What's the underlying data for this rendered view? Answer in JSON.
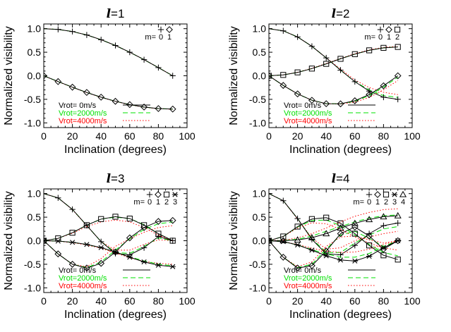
{
  "chart_data": [
    {
      "type": "line",
      "title": "l=1",
      "title_symbol": "l",
      "title_value": "=1",
      "xlabel": "Inclination (degrees)",
      "ylabel": "Normalized visibility",
      "xlim": [
        0,
        100
      ],
      "ylim": [
        -1.1,
        1.1
      ],
      "xticks": [
        "0",
        "20",
        "40",
        "60",
        "80",
        "100"
      ],
      "yticks": [
        "-1.0",
        "-0.5",
        "0.0",
        "0.5",
        "1.0"
      ],
      "grid": false,
      "m_legend": {
        "prefix": "m=",
        "values": [
          "0",
          "1"
        ],
        "markers": [
          "plus",
          "diamond"
        ]
      },
      "x": [
        0,
        10,
        20,
        30,
        40,
        50,
        60,
        70,
        80,
        90
      ],
      "series": [
        {
          "m": "0",
          "marker": "plus",
          "values": [
            1.0,
            0.985,
            0.94,
            0.866,
            0.766,
            0.643,
            0.5,
            0.342,
            0.174,
            0.0
          ],
          "alt_2000": [
            1.0,
            0.985,
            0.94,
            0.866,
            0.766,
            0.643,
            0.5,
            0.342,
            0.174,
            0.0
          ],
          "alt_4000": [
            1.0,
            0.985,
            0.94,
            0.866,
            0.766,
            0.643,
            0.5,
            0.342,
            0.174,
            0.0
          ]
        },
        {
          "m": "1",
          "marker": "diamond",
          "values": [
            0.0,
            -0.123,
            -0.242,
            -0.354,
            -0.455,
            -0.542,
            -0.612,
            -0.664,
            -0.696,
            -0.707
          ],
          "alt_2000": [
            0.0,
            -0.123,
            -0.242,
            -0.354,
            -0.455,
            -0.542,
            -0.612,
            -0.664,
            -0.696,
            -0.707
          ],
          "alt_4000": [
            0.0,
            -0.125,
            -0.245,
            -0.357,
            -0.458,
            -0.545,
            -0.615,
            -0.667,
            -0.699,
            -0.71
          ]
        }
      ]
    },
    {
      "type": "line",
      "title": "l=2",
      "title_symbol": "l",
      "title_value": "=2",
      "xlabel": "Inclination (degrees)",
      "ylabel": "Normalized visibility",
      "xlim": [
        0,
        100
      ],
      "ylim": [
        -1.1,
        1.1
      ],
      "xticks": [
        "0",
        "20",
        "40",
        "60",
        "80",
        "100"
      ],
      "yticks": [
        "-1.0",
        "-0.5",
        "0.0",
        "0.5",
        "1.0"
      ],
      "grid": false,
      "m_legend": {
        "prefix": "m=",
        "values": [
          "0",
          "1",
          "2"
        ],
        "markers": [
          "plus",
          "diamond",
          "square"
        ]
      },
      "x": [
        0,
        10,
        20,
        30,
        40,
        50,
        60,
        70,
        80,
        90
      ],
      "series": [
        {
          "m": "0",
          "marker": "plus",
          "values": [
            1.0,
            0.955,
            0.825,
            0.625,
            0.38,
            0.12,
            -0.125,
            -0.325,
            -0.455,
            -0.5
          ],
          "alt_2000": [
            1.0,
            0.955,
            0.825,
            0.625,
            0.38,
            0.12,
            -0.125,
            -0.3,
            -0.42,
            -0.46
          ],
          "alt_4000": [
            1.0,
            0.955,
            0.825,
            0.625,
            0.38,
            0.14,
            -0.09,
            -0.25,
            -0.35,
            -0.4
          ]
        },
        {
          "m": "1",
          "marker": "diamond",
          "values": [
            0.0,
            -0.205,
            -0.385,
            -0.52,
            -0.593,
            -0.596,
            -0.53,
            -0.399,
            -0.213,
            0.0
          ],
          "alt_2000": [
            0.0,
            -0.205,
            -0.385,
            -0.52,
            -0.593,
            -0.596,
            -0.54,
            -0.42,
            -0.24,
            -0.03
          ],
          "alt_4000": [
            0.0,
            -0.205,
            -0.385,
            -0.52,
            -0.593,
            -0.6,
            -0.56,
            -0.46,
            -0.3,
            -0.1
          ]
        },
        {
          "m": "2",
          "marker": "square",
          "values": [
            0.0,
            0.018,
            0.072,
            0.153,
            0.253,
            0.36,
            0.459,
            0.54,
            0.593,
            0.612
          ],
          "alt_2000": [
            0.0,
            0.018,
            0.072,
            0.153,
            0.253,
            0.36,
            0.459,
            0.54,
            0.593,
            0.612
          ],
          "alt_4000": [
            0.0,
            0.02,
            0.075,
            0.158,
            0.26,
            0.368,
            0.468,
            0.55,
            0.603,
            0.625
          ]
        }
      ]
    },
    {
      "type": "line",
      "title": "l=3",
      "title_symbol": "l",
      "title_value": "=3",
      "xlabel": "Inclination (degrees)",
      "ylabel": "Normalized visibility",
      "xlim": [
        0,
        100
      ],
      "ylim": [
        -1.1,
        1.1
      ],
      "xticks": [
        "0",
        "20",
        "40",
        "60",
        "80",
        "100"
      ],
      "yticks": [
        "-1.0",
        "-0.5",
        "0.0",
        "0.5",
        "1.0"
      ],
      "grid": false,
      "m_legend": {
        "prefix": "m=",
        "values": [
          "0",
          "1",
          "2",
          "3"
        ],
        "markers": [
          "plus",
          "diamond",
          "square",
          "asterisk"
        ]
      },
      "x": [
        0,
        10,
        20,
        30,
        40,
        50,
        60,
        70,
        80,
        90
      ],
      "series": [
        {
          "m": "0",
          "marker": "plus",
          "values": [
            1.0,
            0.91,
            0.665,
            0.325,
            -0.02,
            -0.27,
            -0.3,
            -0.15,
            0.09,
            0.0
          ],
          "alt_2000": [
            1.0,
            0.91,
            0.665,
            0.325,
            -0.02,
            -0.25,
            -0.27,
            -0.12,
            0.06,
            0.0
          ],
          "alt_4000": [
            1.0,
            0.91,
            0.66,
            0.32,
            -0.02,
            -0.2,
            -0.2,
            -0.08,
            0.02,
            0.0
          ]
        },
        {
          "m": "1",
          "marker": "diamond",
          "values": [
            0.0,
            -0.28,
            -0.5,
            -0.58,
            -0.48,
            -0.24,
            0.06,
            0.28,
            0.41,
            0.43
          ],
          "alt_2000": [
            0.0,
            -0.28,
            -0.5,
            -0.57,
            -0.45,
            -0.2,
            0.04,
            0.24,
            0.36,
            0.4
          ],
          "alt_4000": [
            0.0,
            -0.28,
            -0.5,
            -0.55,
            -0.38,
            -0.12,
            0.04,
            0.18,
            0.28,
            0.32
          ]
        },
        {
          "m": "2",
          "marker": "square",
          "values": [
            0.0,
            0.05,
            0.17,
            0.33,
            0.46,
            0.51,
            0.47,
            0.33,
            0.15,
            0.0
          ],
          "alt_2000": [
            0.0,
            0.05,
            0.17,
            0.33,
            0.46,
            0.5,
            0.47,
            0.34,
            0.15,
            0.0
          ],
          "alt_4000": [
            0.0,
            0.05,
            0.16,
            0.3,
            0.4,
            0.44,
            0.4,
            0.28,
            0.12,
            0.0
          ]
        },
        {
          "m": "3",
          "marker": "asterisk",
          "values": [
            0.0,
            -0.008,
            -0.035,
            -0.08,
            -0.145,
            -0.24,
            -0.35,
            -0.45,
            -0.52,
            -0.55
          ],
          "alt_2000": [
            0.0,
            -0.008,
            -0.035,
            -0.08,
            -0.15,
            -0.24,
            -0.34,
            -0.43,
            -0.5,
            -0.53
          ],
          "alt_4000": [
            0.0,
            -0.01,
            -0.04,
            -0.09,
            -0.16,
            -0.26,
            -0.36,
            -0.44,
            -0.48,
            -0.5
          ]
        }
      ]
    },
    {
      "type": "line",
      "title": "l=4",
      "title_symbol": "l",
      "title_value": "=4",
      "xlabel": "Inclination (degrees)",
      "ylabel": "Normalized visibility",
      "xlim": [
        0,
        100
      ],
      "ylim": [
        -1.1,
        1.1
      ],
      "xticks": [
        "0",
        "20",
        "40",
        "60",
        "80",
        "100"
      ],
      "yticks": [
        "-1.0",
        "-0.5",
        "0.0",
        "0.5",
        "1.0"
      ],
      "grid": false,
      "m_legend": {
        "prefix": "m=",
        "values": [
          "0",
          "1",
          "2",
          "3",
          "4"
        ],
        "markers": [
          "plus",
          "diamond",
          "square",
          "asterisk",
          "triangle"
        ]
      },
      "x": [
        0,
        10,
        20,
        30,
        40,
        50,
        60,
        70,
        80,
        90
      ],
      "series": [
        {
          "m": "0",
          "marker": "plus",
          "values": [
            1.0,
            0.85,
            0.47,
            0.03,
            -0.28,
            -0.3,
            -0.1,
            0.15,
            0.32,
            0.375
          ],
          "alt_2000": [
            1.0,
            0.85,
            0.47,
            0.04,
            -0.25,
            -0.25,
            -0.05,
            0.12,
            0.25,
            0.3
          ],
          "alt_4000": [
            1.0,
            0.85,
            0.46,
            0.06,
            -0.18,
            -0.15,
            0.0,
            0.08,
            0.15,
            0.2
          ]
        },
        {
          "m": "1",
          "marker": "diamond",
          "values": [
            0.0,
            -0.35,
            -0.58,
            -0.53,
            -0.22,
            0.15,
            0.29,
            0.1,
            -0.18,
            0.0
          ],
          "alt_2000": [
            0.0,
            -0.35,
            -0.57,
            -0.5,
            -0.18,
            0.12,
            0.2,
            0.05,
            -0.12,
            0.0
          ],
          "alt_4000": [
            0.0,
            -0.35,
            -0.55,
            -0.45,
            -0.12,
            0.08,
            0.1,
            0.02,
            -0.05,
            0.0
          ]
        },
        {
          "m": "2",
          "marker": "square",
          "values": [
            0.0,
            0.09,
            0.3,
            0.46,
            0.49,
            0.37,
            0.15,
            -0.1,
            -0.31,
            -0.4
          ],
          "alt_2000": [
            0.0,
            0.09,
            0.29,
            0.43,
            0.44,
            0.32,
            0.12,
            -0.08,
            -0.25,
            -0.32
          ],
          "alt_4000": [
            0.0,
            0.09,
            0.27,
            0.38,
            0.36,
            0.24,
            0.08,
            -0.05,
            -0.15,
            -0.2
          ]
        },
        {
          "m": "3",
          "marker": "asterisk",
          "values": [
            0.0,
            -0.02,
            -0.09,
            -0.2,
            -0.32,
            -0.41,
            -0.43,
            -0.33,
            -0.15,
            0.0
          ],
          "alt_2000": [
            0.0,
            -0.02,
            -0.09,
            -0.19,
            -0.28,
            -0.35,
            -0.35,
            -0.27,
            -0.13,
            0.0
          ],
          "alt_4000": [
            0.0,
            -0.02,
            -0.08,
            -0.16,
            -0.22,
            -0.25,
            -0.24,
            -0.18,
            -0.08,
            0.0
          ]
        },
        {
          "m": "4",
          "marker": "triangle",
          "values": [
            0.0,
            0.002,
            0.017,
            0.065,
            0.15,
            0.27,
            0.37,
            0.45,
            0.51,
            0.53
          ],
          "alt_2000": [
            0.0,
            0.005,
            0.03,
            0.1,
            0.2,
            0.3,
            0.4,
            0.48,
            0.53,
            0.55
          ],
          "alt_4000": [
            0.0,
            0.01,
            0.06,
            0.15,
            0.27,
            0.4,
            0.52,
            0.6,
            0.66,
            0.68
          ]
        }
      ]
    }
  ],
  "rotation_legend": [
    {
      "label": "Vrot=   0m/s",
      "color": "#000000",
      "style": "solid"
    },
    {
      "label": "Vrot=2000m/s",
      "color": "#00e000",
      "style": "dashed"
    },
    {
      "label": "Vrot=4000m/s",
      "color": "#ff0000",
      "style": "dotted"
    }
  ]
}
